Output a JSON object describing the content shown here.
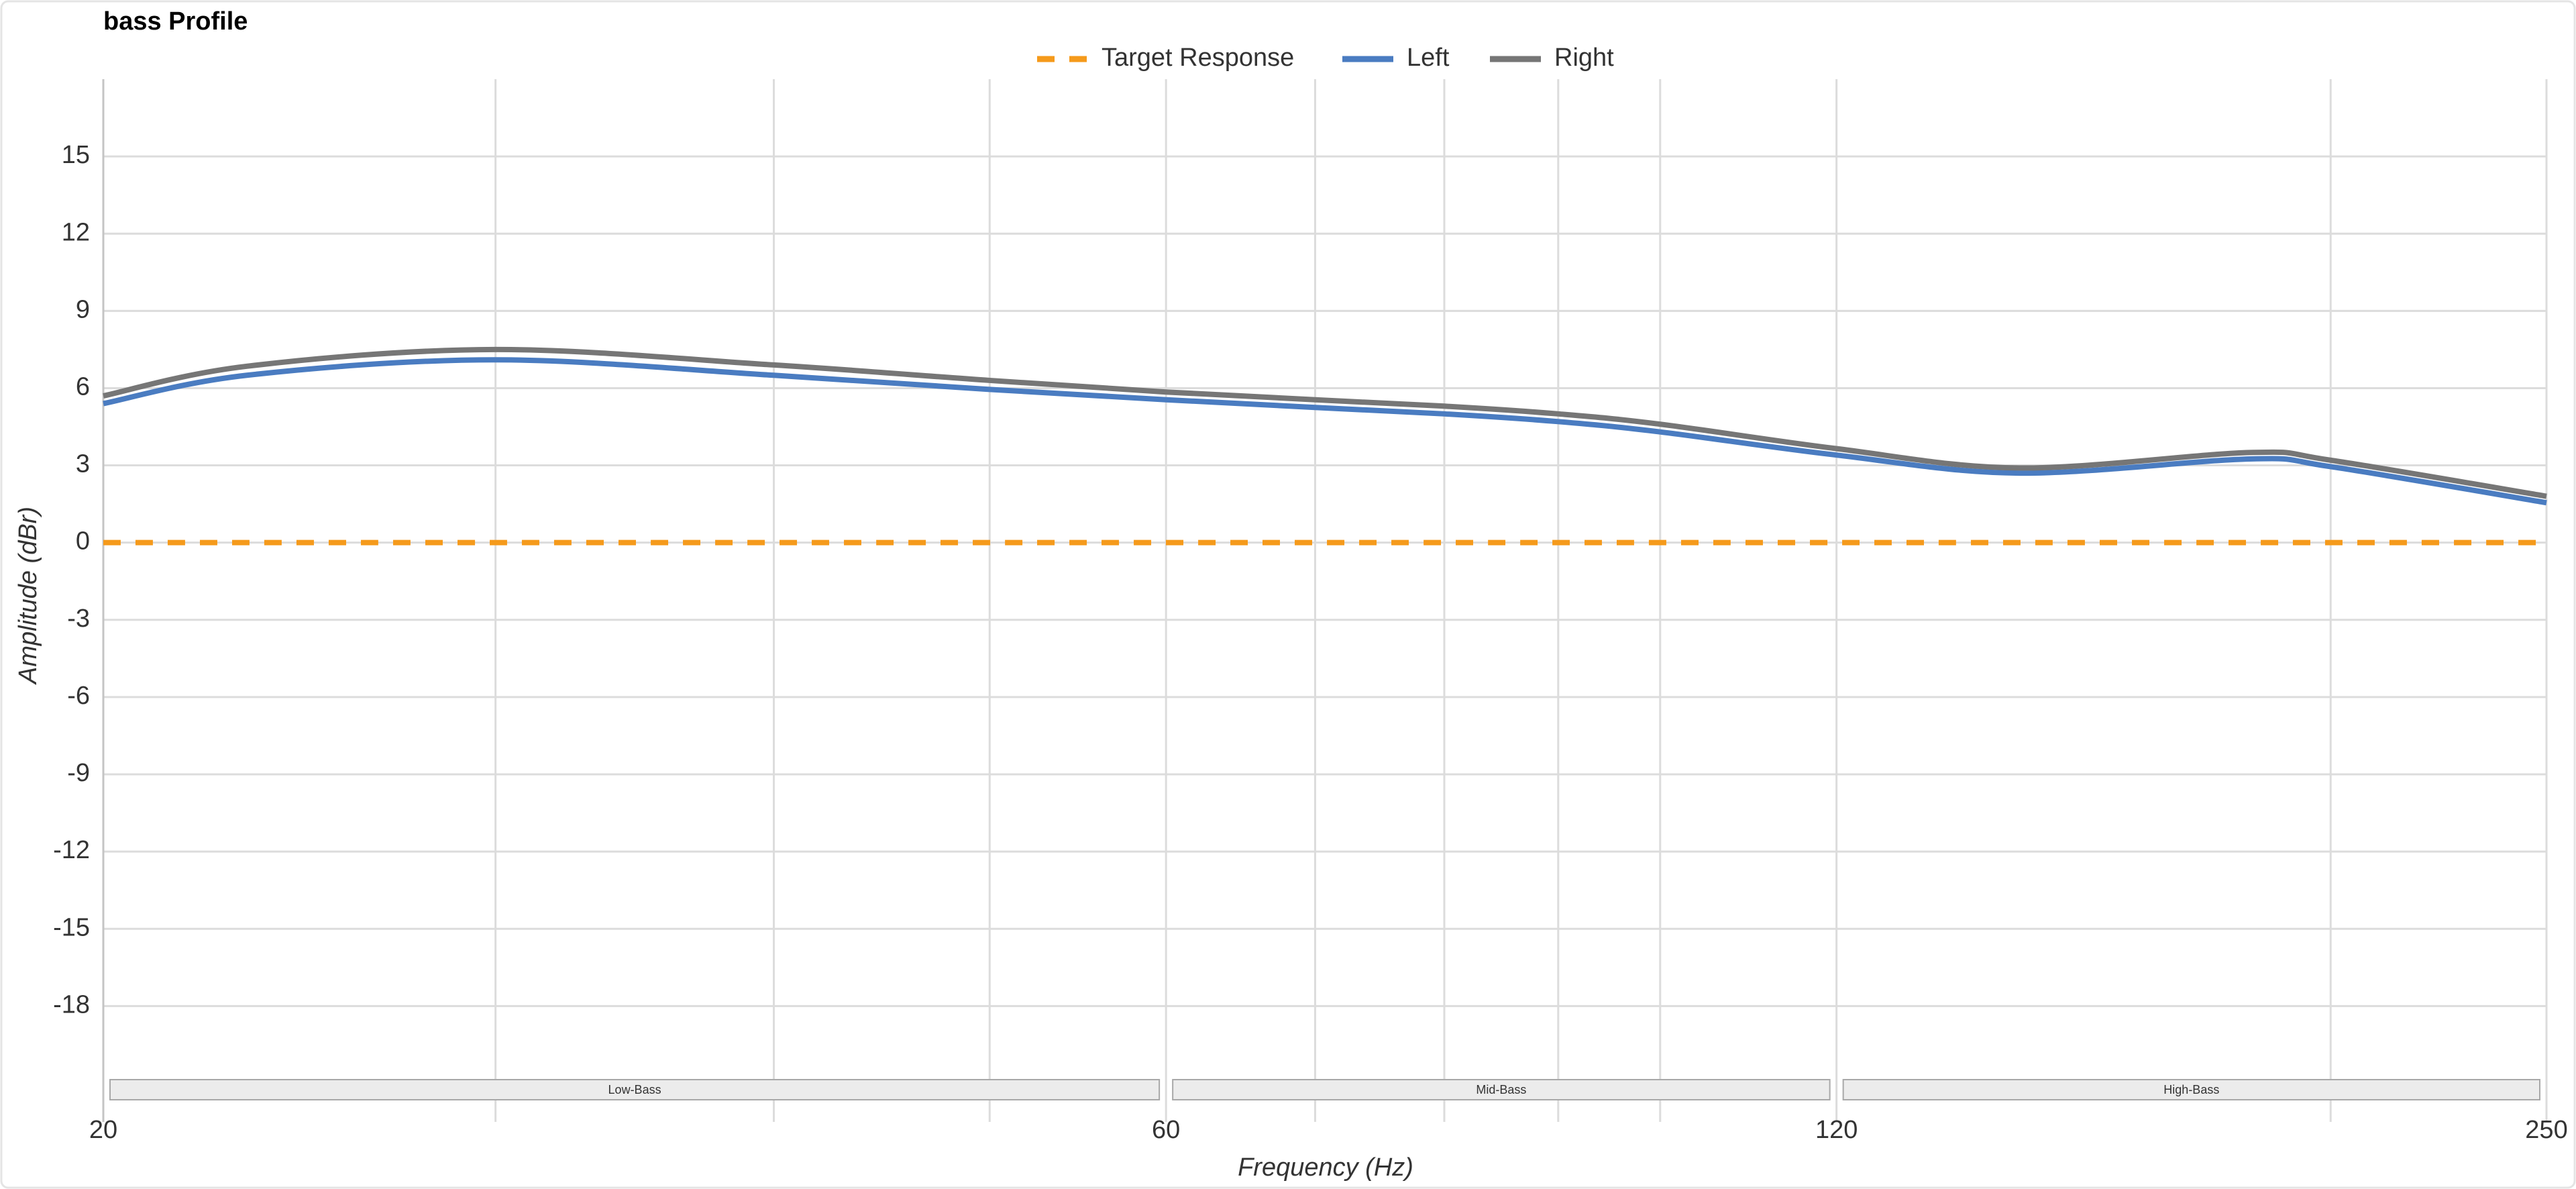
{
  "chart_data": {
    "type": "line",
    "title": "bass Profile",
    "x_label": "Frequency (Hz)",
    "y_label": "Amplitude (dBr)",
    "log_x": true,
    "x": [
      20,
      23.2,
      30,
      40,
      50,
      60,
      70,
      80,
      90,
      100,
      120,
      145,
      184,
      200,
      250
    ],
    "series": [
      {
        "name": "Target Response",
        "color": "#f59a1b",
        "dashed": true,
        "values": [
          0,
          0,
          0,
          0,
          0,
          0,
          0,
          0,
          0,
          0,
          0,
          0,
          0,
          0,
          0
        ]
      },
      {
        "name": "Left",
        "color": "#4a7cc1",
        "dashed": false,
        "values": [
          5.4,
          6.5,
          7.1,
          6.5,
          5.95,
          5.55,
          5.25,
          5.0,
          4.7,
          4.3,
          3.4,
          2.7,
          3.25,
          2.95,
          1.55
        ]
      },
      {
        "name": "Right",
        "color": "#767676",
        "dashed": false,
        "values": [
          5.7,
          6.85,
          7.5,
          6.9,
          6.3,
          5.85,
          5.55,
          5.3,
          5.0,
          4.6,
          3.65,
          2.9,
          3.5,
          3.2,
          1.8
        ]
      }
    ],
    "xlim": [
      20,
      250
    ],
    "xticks": [
      20,
      60,
      120,
      250
    ],
    "xminor": [
      30,
      40,
      50,
      70,
      80,
      90,
      100,
      200
    ],
    "ylim": [
      -22.5,
      18
    ],
    "yticks": [
      -18,
      -15,
      -12,
      -9,
      -6,
      -3,
      0,
      3,
      6,
      9,
      12,
      15
    ],
    "grid": true,
    "legend": "top",
    "bands": [
      {
        "label": "Low-Bass",
        "from": 20,
        "to": 60
      },
      {
        "label": "Mid-Bass",
        "from": 60,
        "to": 120
      },
      {
        "label": "High-Bass",
        "from": 120,
        "to": 250
      }
    ]
  }
}
